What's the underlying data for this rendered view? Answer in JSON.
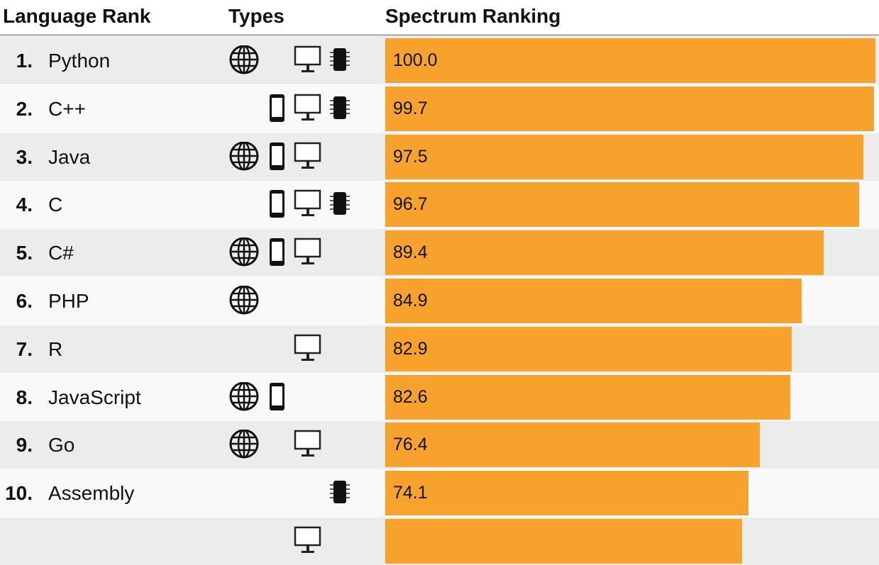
{
  "header": {
    "rank": "Language Rank",
    "types": "Types",
    "spectrum": "Spectrum Ranking"
  },
  "colors": {
    "bar": "#f8a22e",
    "row_odd": "#ececec",
    "row_even": "#f9f9f9"
  },
  "chart_data": {
    "type": "bar",
    "orientation": "horizontal",
    "xlim": [
      0,
      100
    ],
    "categories": [
      "Python",
      "C++",
      "Java",
      "C",
      "C#",
      "PHP",
      "R",
      "JavaScript",
      "Go",
      "Assembly"
    ],
    "rows": [
      {
        "rank": "1.",
        "name": "Python",
        "value": 100.0,
        "label": "100.0",
        "types": [
          "web",
          "desktop",
          "embedded"
        ]
      },
      {
        "rank": "2.",
        "name": "C++",
        "value": 99.7,
        "label": "99.7",
        "types": [
          "mobile",
          "desktop",
          "embedded"
        ]
      },
      {
        "rank": "3.",
        "name": "Java",
        "value": 97.5,
        "label": "97.5",
        "types": [
          "web",
          "mobile",
          "desktop"
        ]
      },
      {
        "rank": "4.",
        "name": "C",
        "value": 96.7,
        "label": "96.7",
        "types": [
          "mobile",
          "desktop",
          "embedded"
        ]
      },
      {
        "rank": "5.",
        "name": "C#",
        "value": 89.4,
        "label": "89.4",
        "types": [
          "web",
          "mobile",
          "desktop"
        ]
      },
      {
        "rank": "6.",
        "name": "PHP",
        "value": 84.9,
        "label": "84.9",
        "types": [
          "web"
        ]
      },
      {
        "rank": "7.",
        "name": "R",
        "value": 82.9,
        "label": "82.9",
        "types": [
          "desktop"
        ]
      },
      {
        "rank": "8.",
        "name": "JavaScript",
        "value": 82.6,
        "label": "82.6",
        "types": [
          "web",
          "mobile"
        ]
      },
      {
        "rank": "9.",
        "name": "Go",
        "value": 76.4,
        "label": "76.4",
        "types": [
          "web",
          "desktop"
        ]
      },
      {
        "rank": "10.",
        "name": "Assembly",
        "value": 74.1,
        "label": "74.1",
        "types": [
          "embedded"
        ]
      },
      {
        "rank": "",
        "name": "",
        "value": 72.8,
        "label": "",
        "types": [
          "desktop"
        ]
      }
    ]
  }
}
